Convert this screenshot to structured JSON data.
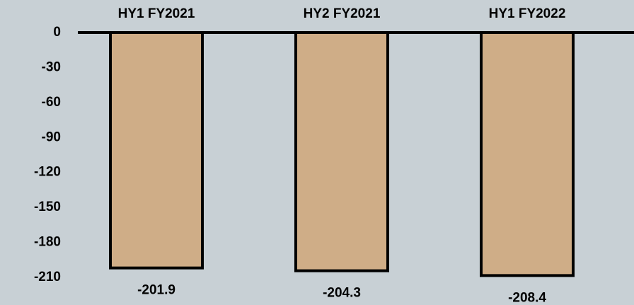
{
  "chart_data": {
    "type": "bar",
    "categories": [
      "HY1 FY2021",
      "HY2 FY2021",
      "HY1 FY2022"
    ],
    "values": [
      -201.9,
      -204.3,
      -208.4
    ],
    "color": "#cfad87",
    "ylim": [
      -210,
      0
    ],
    "yticks": [
      0,
      -30,
      -60,
      -90,
      -120,
      -150,
      -180,
      -210
    ]
  }
}
